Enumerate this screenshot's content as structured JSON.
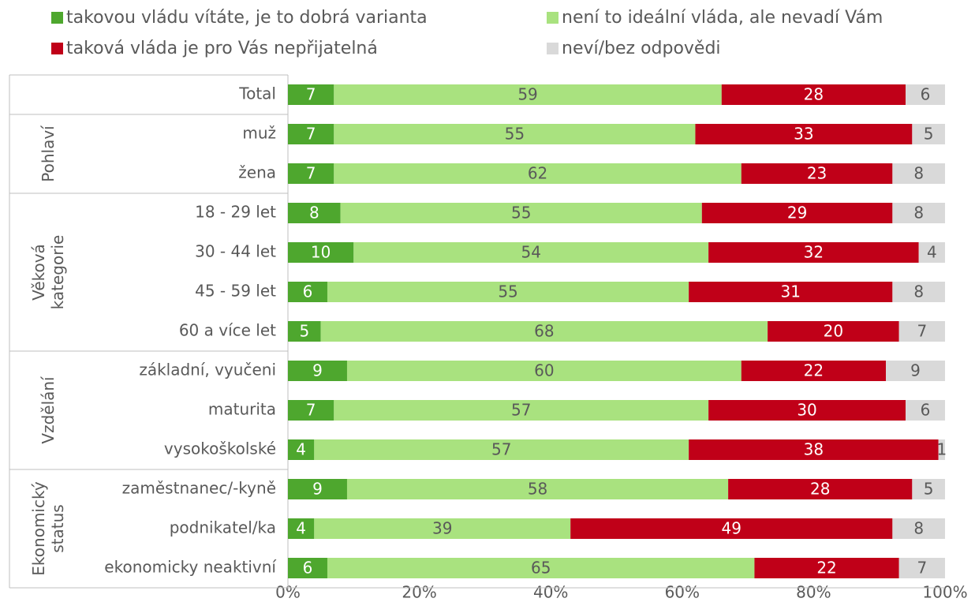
{
  "chart_data": {
    "type": "stacked_bar_horizontal",
    "groups": [
      {
        "label": null,
        "categories": [
          "Total"
        ]
      },
      {
        "label": [
          "Pohlaví"
        ],
        "categories": [
          "muž",
          "žena"
        ]
      },
      {
        "label": [
          "Věková",
          "kategorie"
        ],
        "categories": [
          "18 - 29 let",
          "30 - 44 let",
          "45 - 59 let",
          "60 a více let"
        ]
      },
      {
        "label": [
          "Vzdělání"
        ],
        "categories": [
          "základní, vyučeni",
          "maturita",
          "vysokoškolské"
        ]
      },
      {
        "label": [
          "Ekonomický",
          "status"
        ],
        "categories": [
          "zaměstnanec/-kyně",
          "podnikatel/ka",
          "ekonomicky neaktivní"
        ]
      }
    ],
    "series": [
      {
        "name": "takovou vládu vítáte, je to dobrá varianta",
        "color": "#4ea72e",
        "label_color": "#ffffff",
        "values": [
          7,
          7,
          7,
          8,
          10,
          6,
          5,
          9,
          7,
          4,
          9,
          4,
          6
        ]
      },
      {
        "name": "není to ideální vláda, ale nevadí Vám",
        "color": "#a9e27f",
        "label_color": "#595959",
        "values": [
          59,
          55,
          62,
          55,
          54,
          55,
          68,
          60,
          57,
          57,
          58,
          39,
          65
        ]
      },
      {
        "name": "taková vláda je pro Vás nepřijatelná",
        "color": "#c00018",
        "label_color": "#ffffff",
        "values": [
          28,
          33,
          23,
          29,
          32,
          31,
          20,
          22,
          30,
          38,
          28,
          49,
          22
        ]
      },
      {
        "name": "neví/bez odpovědi",
        "color": "#d9d9d9",
        "label_color": "#595959",
        "values": [
          6,
          5,
          8,
          8,
          4,
          8,
          7,
          9,
          6,
          1,
          5,
          8,
          7
        ]
      }
    ],
    "xlim": [
      0,
      100
    ],
    "xticks": [
      {
        "value": 0,
        "label": "0%"
      },
      {
        "value": 20,
        "label": "20%"
      },
      {
        "value": 40,
        "label": "40%"
      },
      {
        "value": 60,
        "label": "60%"
      },
      {
        "value": 80,
        "label": "80%"
      },
      {
        "value": 100,
        "label": "100%"
      }
    ]
  }
}
